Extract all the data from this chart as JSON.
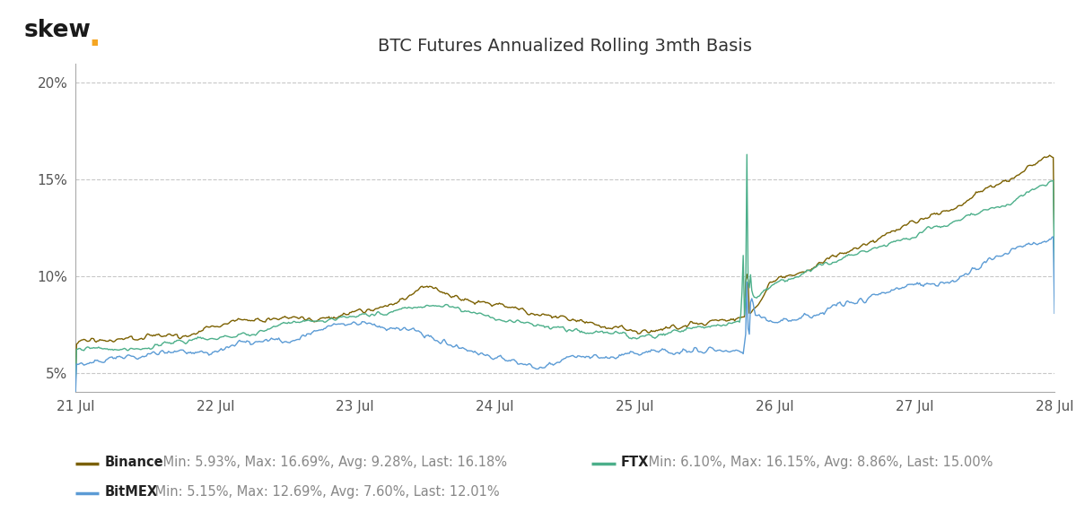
{
  "title": "BTC Futures Annualized Rolling 3mth Basis",
  "skew_dot_color": "#F5A623",
  "background_color": "#ffffff",
  "grid_color": "#c8c8c8",
  "ylim": [
    0.04,
    0.21
  ],
  "yticks": [
    0.05,
    0.1,
    0.15,
    0.2
  ],
  "ytick_labels": [
    "5%",
    "10%",
    "15%",
    "20%"
  ],
  "xtick_labels": [
    "21 Jul",
    "22 Jul",
    "23 Jul",
    "24 Jul",
    "25 Jul",
    "26 Jul",
    "27 Jul",
    "28 Jul"
  ],
  "n_points": 800,
  "binance_color": "#7B6000",
  "ftx_color": "#4CAF8A",
  "bitmex_color": "#5B9BD5",
  "legend_items": [
    {
      "label": "Binance",
      "stats": " Min: 5.93%, Max: 16.69%, Avg: 9.28%, Last: 16.18%",
      "color": "#7B6000"
    },
    {
      "label": "FTX",
      "stats": " Min: 6.10%, Max: 16.15%, Avg: 8.86%, Last: 15.00%",
      "color": "#4CAF8A"
    },
    {
      "label": "BitMEX",
      "stats": " Min: 5.15%, Max: 12.69%, Avg: 7.60%, Last: 12.01%",
      "color": "#5B9BD5"
    }
  ]
}
